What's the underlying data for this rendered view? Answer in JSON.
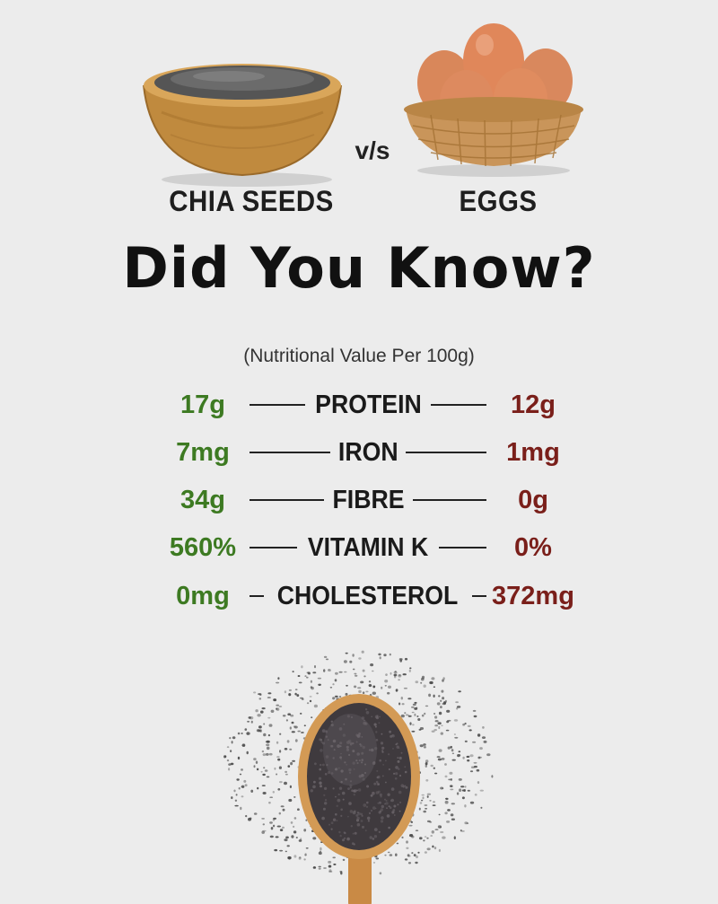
{
  "comparison": {
    "left_item": "CHIA SEEDS",
    "versus": "v/s",
    "right_item": "EGGS"
  },
  "headline": "Did You Know?",
  "subtitle": "(Nutritional Value Per 100g)",
  "nutrients": [
    {
      "name": "PROTEIN",
      "chia": "17g",
      "eggs": "12g"
    },
    {
      "name": "IRON",
      "chia": "7mg",
      "eggs": "1mg"
    },
    {
      "name": "FIBRE",
      "chia": "34g",
      "eggs": "0g"
    },
    {
      "name": "VITAMIN K",
      "chia": "560%",
      "eggs": "0%"
    },
    {
      "name": "CHOLESTEROL",
      "chia": "0mg",
      "eggs": "372mg"
    }
  ],
  "colors": {
    "background": "#ececec",
    "chia_value": "#3d7a22",
    "egg_value": "#7a1f1a"
  },
  "images": [
    "chia-bowl-image",
    "egg-basket-image",
    "chia-spoon-image"
  ]
}
